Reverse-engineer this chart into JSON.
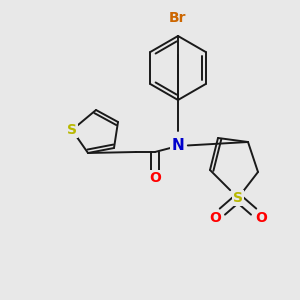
{
  "background_color": "#e8e8e8",
  "fig_size": [
    3.0,
    3.0
  ],
  "dpi": 100,
  "bond_color": "#1a1a1a",
  "bond_width": 1.4,
  "atom_colors": {
    "S": "#b8b800",
    "O": "#ff0000",
    "N": "#0000cc",
    "Br": "#cc6600",
    "C": "#1a1a1a"
  },
  "font_size": 9,
  "bg": "#e8e8e8"
}
